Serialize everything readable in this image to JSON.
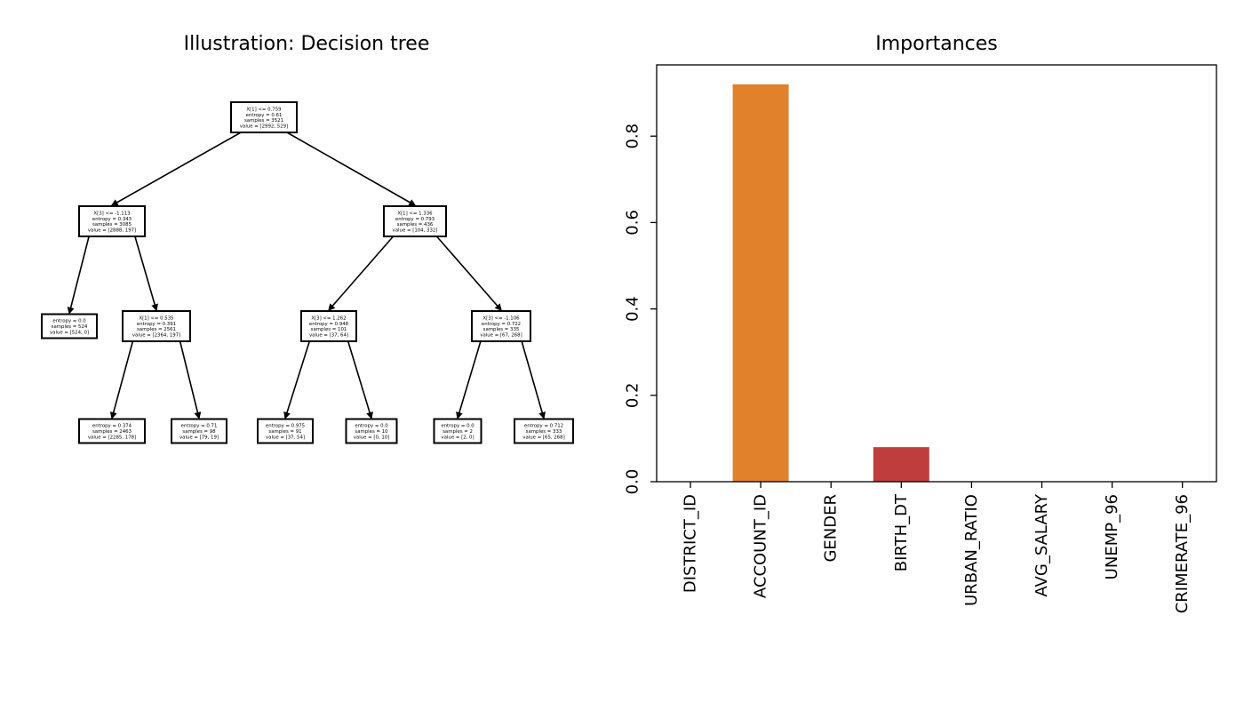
{
  "tree_panel": {
    "title": "Illustration: Decision tree",
    "nodes": [
      {
        "id": "n0",
        "lines": [
          "X[1] <= 0.759",
          "entropy = 0.61",
          "samples = 3521",
          "value = [2992, 529]"
        ]
      },
      {
        "id": "n1",
        "lines": [
          "X[3] <= -1.113",
          "entropy = 0.343",
          "samples = 3085",
          "value = [2888, 197]"
        ]
      },
      {
        "id": "n2",
        "lines": [
          "X[1] <= 1.336",
          "entropy = 0.793",
          "samples = 436",
          "value = [104, 332]"
        ]
      },
      {
        "id": "n3",
        "lines": [
          "entropy = 0.0",
          "samples = 524",
          "value = [524, 0]"
        ]
      },
      {
        "id": "n4",
        "lines": [
          "X[1] <= 0.535",
          "entropy = 0.391",
          "samples = 2561",
          "value = [2364, 197]"
        ]
      },
      {
        "id": "n5",
        "lines": [
          "X[3] <= 1.262",
          "entropy = 0.948",
          "samples = 101",
          "value = [37, 64]"
        ]
      },
      {
        "id": "n6",
        "lines": [
          "X[3] <= -1.106",
          "entropy = 0.722",
          "samples = 335",
          "value = [67, 268]"
        ]
      },
      {
        "id": "n7",
        "lines": [
          "entropy = 0.374",
          "samples = 2463",
          "value = [2285, 178]"
        ]
      },
      {
        "id": "n8",
        "lines": [
          "entropy = 0.71",
          "samples = 98",
          "value = [79, 19]"
        ]
      },
      {
        "id": "n9",
        "lines": [
          "entropy = 0.975",
          "samples = 91",
          "value = [37, 54]"
        ]
      },
      {
        "id": "n10",
        "lines": [
          "entropy = 0.0",
          "samples = 10",
          "value = [0, 10]"
        ]
      },
      {
        "id": "n11",
        "lines": [
          "entropy = 0.0",
          "samples = 2",
          "value = [2, 0]"
        ]
      },
      {
        "id": "n12",
        "lines": [
          "entropy = 0.712",
          "samples = 333",
          "value = [65, 268]"
        ]
      }
    ],
    "edges": [
      [
        "n0",
        "n1"
      ],
      [
        "n0",
        "n2"
      ],
      [
        "n1",
        "n3"
      ],
      [
        "n1",
        "n4"
      ],
      [
        "n2",
        "n5"
      ],
      [
        "n2",
        "n6"
      ],
      [
        "n4",
        "n7"
      ],
      [
        "n4",
        "n8"
      ],
      [
        "n5",
        "n9"
      ],
      [
        "n5",
        "n10"
      ],
      [
        "n6",
        "n11"
      ],
      [
        "n6",
        "n12"
      ]
    ]
  },
  "chart_data": {
    "type": "bar",
    "title": "Importances",
    "xlabel": "",
    "ylabel": "",
    "categories": [
      "DISTRICT_ID",
      "ACCOUNT_ID",
      "GENDER",
      "BIRTH_DT",
      "URBAN_RATIO",
      "AVG_SALARY",
      "UNEMP_96",
      "CRIMERATE_96"
    ],
    "values": [
      0.0,
      0.92,
      0.0,
      0.08,
      0.0,
      0.0,
      0.0,
      0.0
    ],
    "colors": [
      "#3274a1",
      "#e1812c",
      "#3a923a",
      "#c03d3e",
      "#9372b2",
      "#845b53",
      "#d684bd",
      "#7f7f7f"
    ],
    "ylim": [
      0,
      0.965
    ],
    "yticks": [
      0.0,
      0.2,
      0.4,
      0.6,
      0.8
    ],
    "ytick_labels": [
      "0.0",
      "0.2",
      "0.4",
      "0.6",
      "0.8"
    ],
    "grid": false,
    "legend": "none"
  }
}
